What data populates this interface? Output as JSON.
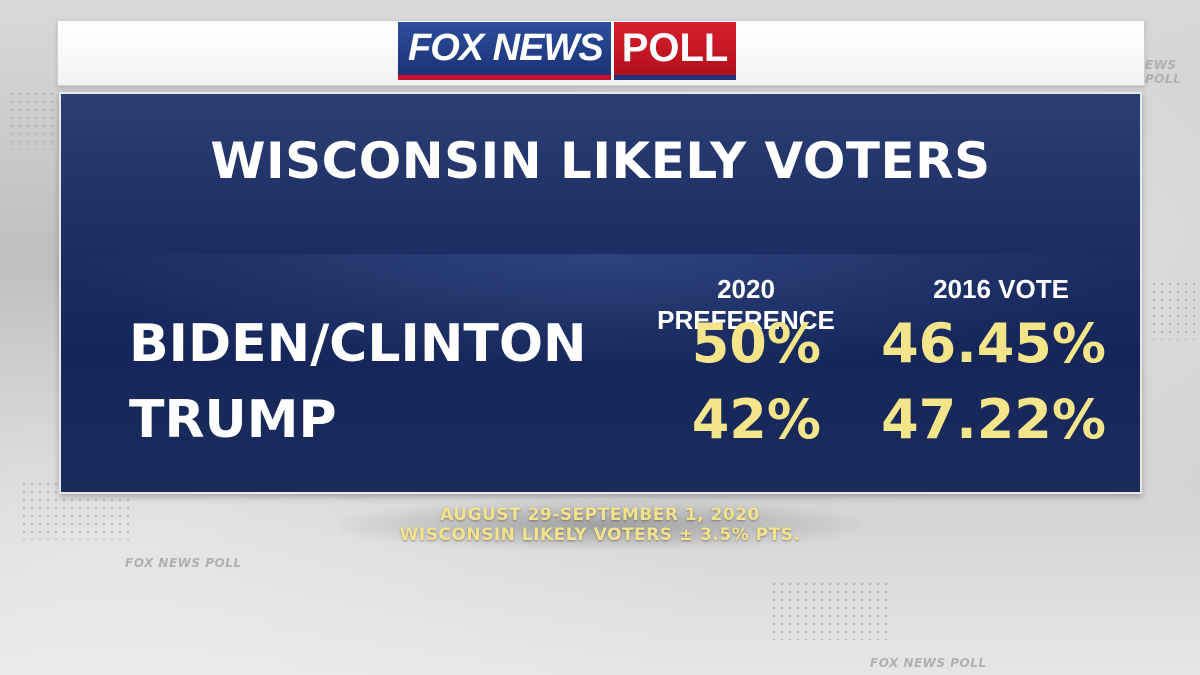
{
  "brand": {
    "logo_fox": "FOX NEWS",
    "logo_poll": "POLL"
  },
  "panel": {
    "title": "WISCONSIN LIKELY VOTERS",
    "columns": [
      "2020 PREFERENCE",
      "2016 VOTE"
    ],
    "rows": [
      {
        "label": "BIDEN/CLINTON",
        "values": [
          "50%",
          "46.45%"
        ]
      },
      {
        "label": "TRUMP",
        "values": [
          "42%",
          "47.22%"
        ]
      }
    ]
  },
  "footnote": {
    "dates": "AUGUST 29-SEPTEMBER 1, 2020",
    "sample": "WISCONSIN LIKELY VOTERS ± 3.5% PTS."
  },
  "background": {
    "watermark_1": "FOX NEWS POLL",
    "watermark_2": "FOX NEWS POLL",
    "watermark_3": "EWS POLL"
  },
  "colors": {
    "panel_navy": "#1c2e63",
    "value_gold": "#f5e58a",
    "fox_blue": "#1b3276",
    "poll_red": "#c8102e"
  },
  "icons": {
    "logo": "fox-news-poll-logo"
  }
}
